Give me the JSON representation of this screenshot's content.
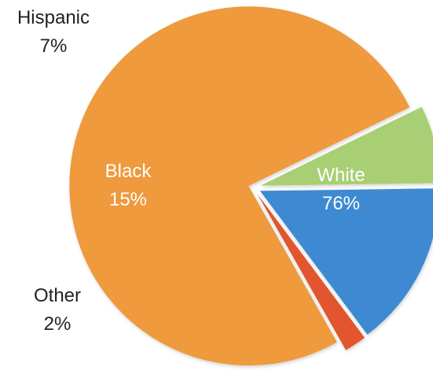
{
  "chart_data": {
    "type": "pie",
    "title": "",
    "slices": [
      {
        "name": "White",
        "percent_text": "76%",
        "value": 76,
        "color": "#EE9A3C",
        "label_position": "inside"
      },
      {
        "name": "Other",
        "percent_text": "2%",
        "value": 2,
        "color": "#E2552D",
        "label_position": "outside"
      },
      {
        "name": "Black",
        "percent_text": "15%",
        "value": 15,
        "color": "#3E8AD3",
        "label_position": "inside"
      },
      {
        "name": "Hispanic",
        "percent_text": "7%",
        "value": 7,
        "color": "#A8CF73",
        "label_position": "outside"
      }
    ],
    "start_angle_deg": 26,
    "exploded_slices": [
      "White",
      "Other",
      "Black",
      "Hispanic"
    ]
  }
}
